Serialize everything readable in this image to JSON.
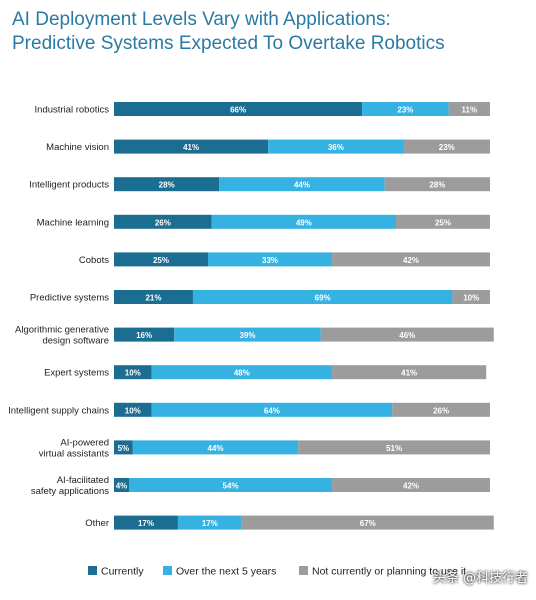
{
  "chart_data": {
    "type": "bar",
    "orientation": "horizontal",
    "stacked": true,
    "title_line1": "AI Deployment Levels Vary with Applications:",
    "title_line2": "Predictive Systems Expected To Overtake Robotics",
    "categories": [
      "Industrial robotics",
      "Machine vision",
      "Intelligent products",
      "Machine learning",
      "Cobots",
      "Predictive systems",
      "Algorithmic generative design software",
      "Expert systems",
      "Intelligent supply chains",
      "AI-powered virtual assistants",
      "AI-facilitated safety applications",
      "Other"
    ],
    "category_lines": [
      [
        "Industrial robotics"
      ],
      [
        "Machine vision"
      ],
      [
        "Intelligent products"
      ],
      [
        "Machine learning"
      ],
      [
        "Cobots"
      ],
      [
        "Predictive systems"
      ],
      [
        "Algorithmic generative",
        "design software"
      ],
      [
        "Expert systems"
      ],
      [
        "Intelligent supply chains"
      ],
      [
        "AI-powered",
        "virtual assistants"
      ],
      [
        "AI-facilitated",
        "safety applications"
      ],
      [
        "Other"
      ]
    ],
    "series": [
      {
        "name": "Currently",
        "color": "#1b6e91",
        "values": [
          66,
          41,
          28,
          26,
          25,
          21,
          16,
          10,
          10,
          5,
          4,
          17
        ]
      },
      {
        "name": "Over the next 5 years",
        "color": "#35b1e2",
        "values": [
          23,
          36,
          44,
          49,
          33,
          69,
          39,
          48,
          64,
          44,
          54,
          17
        ]
      },
      {
        "name": "Not currently or planning to use it",
        "color": "#9c9c9c",
        "values": [
          11,
          23,
          28,
          25,
          42,
          10,
          46,
          41,
          26,
          51,
          42,
          67
        ]
      }
    ],
    "value_suffix": "%",
    "legend_position": "bottom",
    "grid": false
  },
  "watermark": "头条 @科技行者"
}
